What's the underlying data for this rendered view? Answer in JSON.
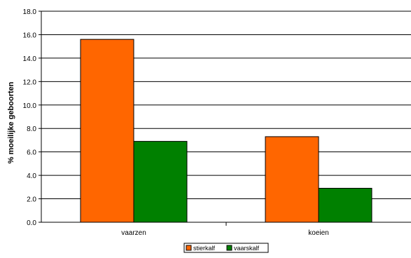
{
  "chart_data": {
    "type": "bar",
    "title": "",
    "xlabel": "",
    "ylabel": "% moeilijke geboorten",
    "ylim": [
      0,
      18
    ],
    "yticks": [
      "0.0",
      "2.0",
      "4.0",
      "6.0",
      "8.0",
      "10.0",
      "12.0",
      "14.0",
      "16.0",
      "18.0"
    ],
    "categories": [
      "vaarzen",
      "koeien"
    ],
    "series": [
      {
        "name": "stierkalf",
        "values": [
          15.6,
          7.3
        ],
        "color": "#ff6600"
      },
      {
        "name": "vaarskalf",
        "values": [
          6.9,
          2.9
        ],
        "color": "#008000"
      }
    ],
    "grid": true,
    "legend": "bottom-center"
  }
}
